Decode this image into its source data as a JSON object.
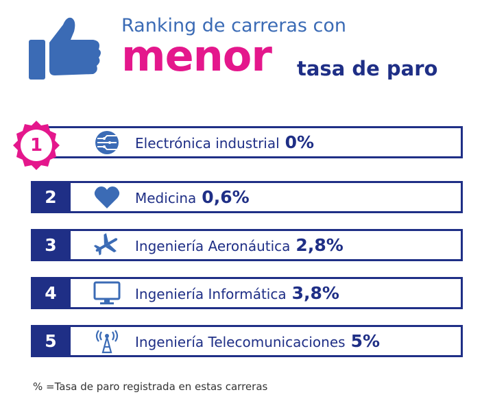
{
  "header": {
    "line1": "Ranking de carreras con",
    "highlight": "menor",
    "line2": "tasa de paro"
  },
  "icons": [
    "thumbs-up-icon",
    "circuit-icon",
    "heart-icon",
    "airplane-icon",
    "monitor-icon",
    "antenna-icon"
  ],
  "colors": {
    "navy": "#1f2f86",
    "magenta": "#e4178c",
    "blue": "#3b6bb5"
  },
  "chart_data": {
    "type": "table",
    "title": "Ranking de carreras con menor tasa de paro",
    "categories": [
      "Electrónica industrial",
      "Medicina",
      "Ingeniería Aeronáutica",
      "Ingeniería Informática",
      "Ingeniería Telecomunicaciones"
    ],
    "ranks": [
      "1",
      "2",
      "3",
      "4",
      "5"
    ],
    "values": [
      0,
      0.6,
      2.8,
      3.8,
      5
    ],
    "value_labels": [
      "0%",
      "0,6%",
      "2,8%",
      "3,8%",
      "5%"
    ],
    "unit": "%"
  },
  "footnote": "% =Tasa de paro registrada en estas carreras"
}
